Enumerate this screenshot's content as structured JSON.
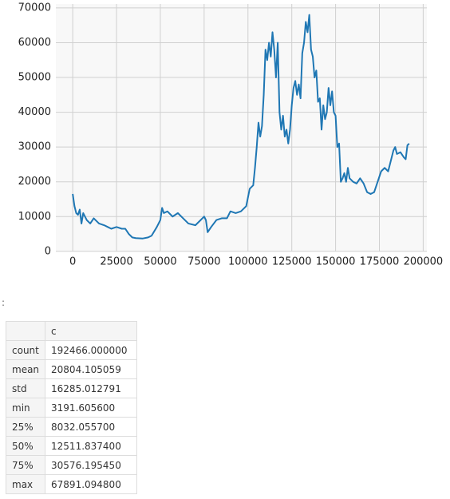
{
  "chart_data": {
    "type": "line",
    "x": [
      0,
      1000,
      2000,
      3000,
      4000,
      5000,
      6000,
      8000,
      10000,
      12000,
      15000,
      18000,
      20000,
      22000,
      25000,
      28000,
      30000,
      32000,
      34000,
      36000,
      40000,
      43000,
      45000,
      48000,
      50000,
      51000,
      52000,
      54000,
      57000,
      60000,
      63000,
      66000,
      70000,
      73000,
      75000,
      76000,
      77000,
      79000,
      82000,
      85000,
      88000,
      90000,
      93000,
      96000,
      99000,
      101000,
      103000,
      104000,
      105000,
      106000,
      107000,
      108000,
      109000,
      110000,
      111000,
      112000,
      113000,
      114000,
      115000,
      116000,
      117000,
      118000,
      119000,
      120000,
      121000,
      122000,
      123000,
      124000,
      125000,
      126000,
      127000,
      128000,
      129000,
      130000,
      131000,
      132000,
      133000,
      134000,
      135000,
      136000,
      137000,
      138000,
      139000,
      140000,
      141000,
      142000,
      143000,
      144000,
      145000,
      146000,
      147000,
      148000,
      149000,
      150000,
      151000,
      152000,
      153000,
      154000,
      155000,
      156000,
      157000,
      158000,
      160000,
      162000,
      164000,
      166000,
      168000,
      170000,
      172000,
      174000,
      176000,
      178000,
      180000,
      182000,
      183000,
      184000,
      185000,
      187000,
      189000,
      190000,
      191000,
      192000
    ],
    "series": [
      {
        "color": "#1f77b4",
        "values": [
          16500,
          13000,
          11000,
          10500,
          12000,
          8000,
          11000,
          9000,
          8000,
          9500,
          8000,
          7500,
          7000,
          6500,
          7000,
          6500,
          6500,
          5000,
          4000,
          3800,
          3700,
          4000,
          4500,
          7000,
          9000,
          12500,
          11000,
          11500,
          10000,
          11000,
          9500,
          8000,
          7500,
          9000,
          10000,
          9000,
          5500,
          7000,
          9000,
          9500,
          9500,
          11500,
          11000,
          11500,
          13000,
          18000,
          19000,
          24000,
          30000,
          37000,
          33000,
          36000,
          45000,
          58000,
          55000,
          60000,
          56000,
          63000,
          58000,
          50000,
          60000,
          40000,
          35000,
          39000,
          33000,
          35000,
          31000,
          35000,
          42000,
          47000,
          49000,
          45000,
          48000,
          44000,
          57000,
          60000,
          66000,
          63000,
          68000,
          58000,
          56000,
          50000,
          52000,
          43000,
          44000,
          35000,
          42000,
          38000,
          40000,
          47000,
          42000,
          46000,
          40000,
          39000,
          30000,
          31000,
          20000,
          21000,
          22500,
          20000,
          24000,
          21000,
          20000,
          19500,
          21000,
          19500,
          17000,
          16500,
          17000,
          20000,
          23000,
          24000,
          23000,
          27000,
          29000,
          30000,
          28000,
          28500,
          27000,
          26500,
          30500,
          31000
        ]
      }
    ],
    "xlim": [
      -9623,
      202089
    ],
    "xticks": [
      0,
      25000,
      50000,
      75000,
      100000,
      125000,
      150000,
      175000,
      200000
    ],
    "ylim": [
      -44,
      71126
    ],
    "yticks": [
      0,
      10000,
      20000,
      30000,
      40000,
      50000,
      60000,
      70000
    ],
    "grid": true
  },
  "prompt": ":",
  "table": {
    "header": [
      "",
      "c"
    ],
    "rows": [
      [
        "count",
        "192466.000000"
      ],
      [
        "mean",
        "20804.105059"
      ],
      [
        "std",
        "16285.012791"
      ],
      [
        "min",
        "3191.605600"
      ],
      [
        "25%",
        "8032.055700"
      ],
      [
        "50%",
        "12511.837400"
      ],
      [
        "75%",
        "30576.195450"
      ],
      [
        "max",
        "67891.094800"
      ]
    ]
  }
}
